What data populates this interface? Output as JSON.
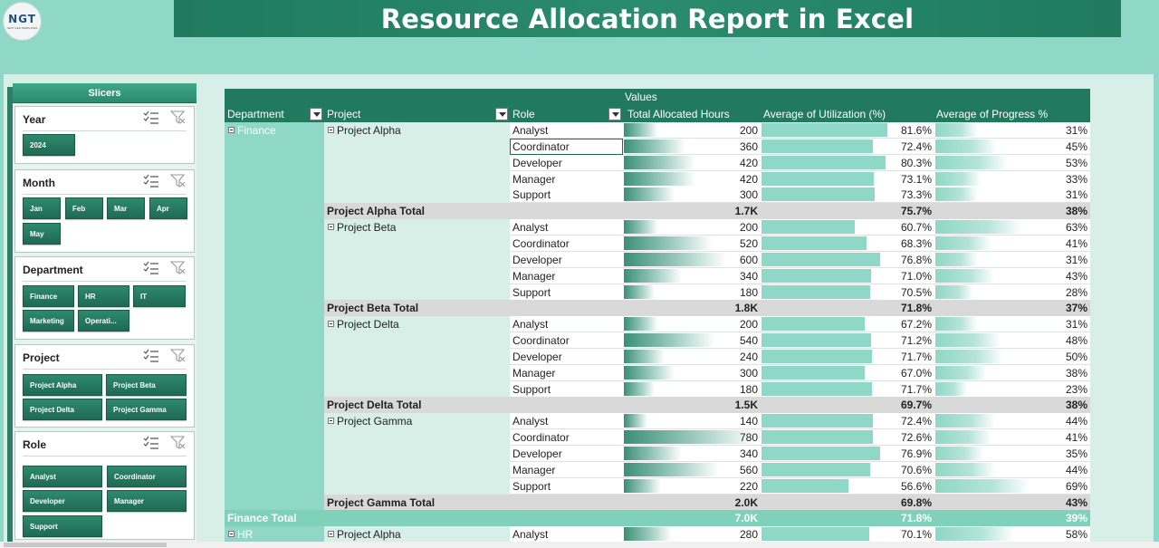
{
  "logo": {
    "text": "NGT",
    "sub": "NEXT GEN TEMPLATES"
  },
  "title": "Resource Allocation Report in Excel",
  "panel_title": "Slicers",
  "slicers": {
    "year": {
      "title": "Year",
      "items": [
        "2024"
      ]
    },
    "month": {
      "title": "Month",
      "items": [
        "Jan",
        "Feb",
        "Mar",
        "Apr",
        "May"
      ]
    },
    "department": {
      "title": "Department",
      "items": [
        "Finance",
        "HR",
        "IT",
        "Marketing",
        "Operati..."
      ]
    },
    "project": {
      "title": "Project",
      "items": [
        "Project Alpha",
        "Project Beta",
        "Project Delta",
        "Project Gamma"
      ]
    },
    "role": {
      "title": "Role",
      "items": [
        "Analyst",
        "Coordinator",
        "Developer",
        "Manager",
        "Support"
      ]
    }
  },
  "pivot": {
    "values_label": "Values",
    "headers": {
      "department": "Department",
      "project": "Project",
      "role": "Role",
      "hours": "Total Allocated Hours",
      "util": "Average of Utilization (%)",
      "progress": "Average of Progress %"
    },
    "department_name": "Finance",
    "projects": [
      {
        "name": "Project Alpha",
        "total_label": "Project Alpha Total",
        "total_hours": "1.7K",
        "total_util": "75.7%",
        "total_progress": "38%",
        "rows": [
          {
            "role": "Analyst",
            "hours": "200",
            "hv": 200,
            "util": "81.6%",
            "uv": 81.6,
            "progress": "31%",
            "pv": 31
          },
          {
            "role": "Coordinator",
            "hours": "360",
            "hv": 360,
            "util": "72.4%",
            "uv": 72.4,
            "progress": "45%",
            "pv": 45
          },
          {
            "role": "Developer",
            "hours": "420",
            "hv": 420,
            "util": "80.3%",
            "uv": 80.3,
            "progress": "53%",
            "pv": 53
          },
          {
            "role": "Manager",
            "hours": "420",
            "hv": 420,
            "util": "73.1%",
            "uv": 73.1,
            "progress": "33%",
            "pv": 33
          },
          {
            "role": "Support",
            "hours": "300",
            "hv": 300,
            "util": "73.3%",
            "uv": 73.3,
            "progress": "31%",
            "pv": 31
          }
        ]
      },
      {
        "name": "Project Beta",
        "total_label": "Project Beta Total",
        "total_hours": "1.8K",
        "total_util": "71.8%",
        "total_progress": "37%",
        "rows": [
          {
            "role": "Analyst",
            "hours": "200",
            "hv": 200,
            "util": "60.7%",
            "uv": 60.7,
            "progress": "63%",
            "pv": 63
          },
          {
            "role": "Coordinator",
            "hours": "520",
            "hv": 520,
            "util": "68.3%",
            "uv": 68.3,
            "progress": "41%",
            "pv": 41
          },
          {
            "role": "Developer",
            "hours": "600",
            "hv": 600,
            "util": "76.8%",
            "uv": 76.8,
            "progress": "31%",
            "pv": 31
          },
          {
            "role": "Manager",
            "hours": "340",
            "hv": 340,
            "util": "71.0%",
            "uv": 71.0,
            "progress": "43%",
            "pv": 43
          },
          {
            "role": "Support",
            "hours": "180",
            "hv": 180,
            "util": "70.5%",
            "uv": 70.5,
            "progress": "28%",
            "pv": 28
          }
        ]
      },
      {
        "name": "Project Delta",
        "total_label": "Project Delta Total",
        "total_hours": "1.5K",
        "total_util": "69.7%",
        "total_progress": "38%",
        "rows": [
          {
            "role": "Analyst",
            "hours": "200",
            "hv": 200,
            "util": "67.2%",
            "uv": 67.2,
            "progress": "31%",
            "pv": 31
          },
          {
            "role": "Coordinator",
            "hours": "540",
            "hv": 540,
            "util": "71.2%",
            "uv": 71.2,
            "progress": "48%",
            "pv": 48
          },
          {
            "role": "Developer",
            "hours": "240",
            "hv": 240,
            "util": "71.7%",
            "uv": 71.7,
            "progress": "50%",
            "pv": 50
          },
          {
            "role": "Manager",
            "hours": "300",
            "hv": 300,
            "util": "67.0%",
            "uv": 67.0,
            "progress": "38%",
            "pv": 38
          },
          {
            "role": "Support",
            "hours": "180",
            "hv": 180,
            "util": "71.7%",
            "uv": 71.7,
            "progress": "23%",
            "pv": 23
          }
        ]
      },
      {
        "name": "Project Gamma",
        "total_label": "Project Gamma Total",
        "total_hours": "2.0K",
        "total_util": "69.8%",
        "total_progress": "43%",
        "rows": [
          {
            "role": "Analyst",
            "hours": "140",
            "hv": 140,
            "util": "72.4%",
            "uv": 72.4,
            "progress": "44%",
            "pv": 44
          },
          {
            "role": "Coordinator",
            "hours": "780",
            "hv": 780,
            "util": "72.6%",
            "uv": 72.6,
            "progress": "41%",
            "pv": 41
          },
          {
            "role": "Developer",
            "hours": "340",
            "hv": 340,
            "util": "76.9%",
            "uv": 76.9,
            "progress": "35%",
            "pv": 35
          },
          {
            "role": "Manager",
            "hours": "560",
            "hv": 560,
            "util": "70.6%",
            "uv": 70.6,
            "progress": "44%",
            "pv": 44
          },
          {
            "role": "Support",
            "hours": "220",
            "hv": 220,
            "util": "56.6%",
            "uv": 56.6,
            "progress": "69%",
            "pv": 69
          }
        ]
      }
    ],
    "dept_total": {
      "label": "Finance Total",
      "hours": "7.0K",
      "util": "71.8%",
      "progress": "39%"
    },
    "next_dept": {
      "name": "HR",
      "project": "Project Alpha",
      "role": "Analyst",
      "hours": "280",
      "hv": 280,
      "util": "70.1%",
      "uv": 70.1,
      "progress": "58%",
      "pv": 58
    },
    "scales": {
      "hours_max": 800,
      "util_max": 100,
      "progress_max": 100
    }
  },
  "colors": {
    "brand": "#217a5d",
    "accent": "#8fd7c6",
    "total": "#d9d9d9"
  }
}
